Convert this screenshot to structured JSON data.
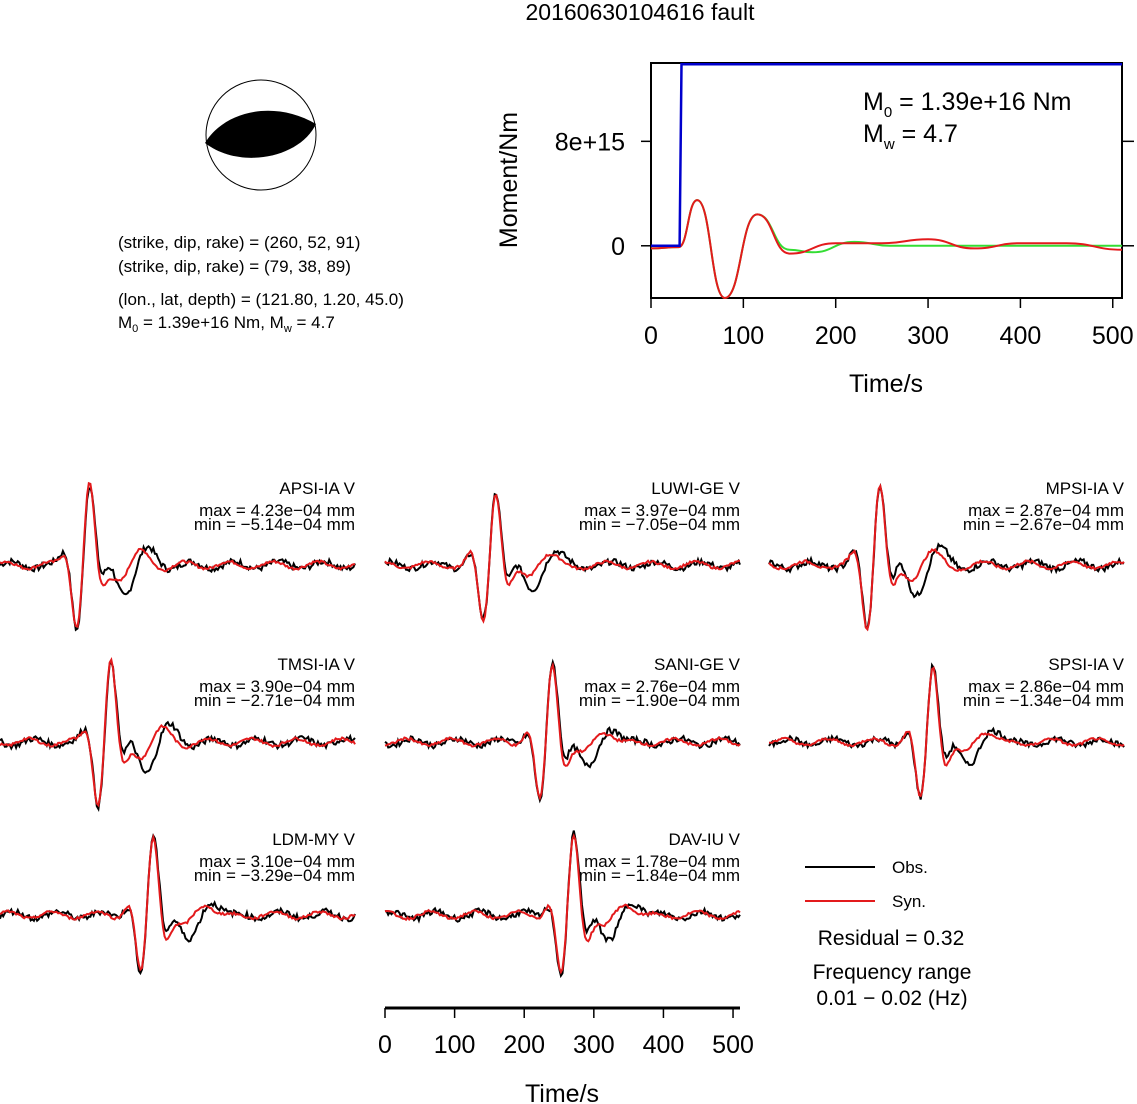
{
  "title": "20160630104616 fault",
  "mechanism_info": {
    "plane1": "(strike, dip, rake) = (260, 52, 91)",
    "plane2": "(strike, dip, rake) = (79, 38, 89)",
    "location": "(lon., lat, depth) = (121.80, 1.20, 45.0)",
    "moment_prefix": "M",
    "moment_sub": "0",
    "moment_mid": " = 1.39e+16 Nm, M",
    "moment_sub2": "w",
    "moment_end": " = 4.7"
  },
  "moment_annotation": {
    "m0_label": "M",
    "m0_sub": "0",
    "m0_value": " = 1.39e+16 Nm",
    "mw_label": "M",
    "mw_sub": "w",
    "mw_value": " = 4.7"
  },
  "legend": {
    "obs": "Obs.",
    "syn": "Syn.",
    "residual": "Residual = 0.32",
    "freq_label": "Frequency range",
    "freq_value": "0.01 − 0.02 (Hz)"
  },
  "colors": {
    "observed": "#000000",
    "synthetic": "#e31a1c",
    "moment": "#0000cc",
    "stf_fit": "#33dd33"
  },
  "chart_data": [
    {
      "type": "line",
      "xlabel": "Time/s",
      "ylabel": "Moment/Nm",
      "xlim": [
        0,
        510
      ],
      "ylim": [
        -4000000000000000.0,
        1.4e+16
      ],
      "xticks": [
        "0",
        "100",
        "200",
        "300",
        "400",
        "500"
      ],
      "yticks": [
        "0",
        "8e+15"
      ],
      "series": [
        {
          "x": [
            0,
            31,
            33,
            510
          ],
          "y": [
            0,
            0,
            1.39e+16,
            1.39e+16
          ]
        },
        {
          "x": [
            0,
            30,
            50,
            80,
            115,
            150,
            200,
            250,
            300,
            350,
            400,
            450,
            510
          ],
          "y": [
            -200000000000000.0,
            -100000000000000.0,
            3500000000000000.0,
            -4000000000000000.0,
            2400000000000000.0,
            -600000000000000.0,
            200000000000000.0,
            200000000000000.0,
            500000000000000.0,
            -200000000000000.0,
            200000000000000.0,
            200000000000000.0,
            -300000000000000.0
          ]
        },
        {
          "x": [
            0,
            30,
            50,
            80,
            115,
            150,
            175,
            220,
            260,
            300,
            510
          ],
          "y": [
            -200000000000000.0,
            -100000000000000.0,
            3500000000000000.0,
            -4000000000000000.0,
            2400000000000000.0,
            -300000000000000.0,
            -500000000000000.0,
            300000000000000.0,
            0,
            0,
            0
          ]
        }
      ]
    },
    {
      "type": "line",
      "xlabel": "Time/s",
      "xlim": [
        0,
        510
      ],
      "xticks": [
        "0",
        "100",
        "200",
        "300",
        "400",
        "500"
      ],
      "traces": [
        {
          "station": "APSI-IA V",
          "max": "max = 4.23e−04 mm",
          "min": "min = −5.14e−04 mm"
        },
        {
          "station": "LUWI-GE V",
          "max": "max = 3.97e−04 mm",
          "min": "min = −7.05e−04 mm"
        },
        {
          "station": "MPSI-IA V",
          "max": "max = 2.87e−04 mm",
          "min": "min = −2.67e−04 mm"
        },
        {
          "station": "TMSI-IA V",
          "max": "max = 3.90e−04 mm",
          "min": "min = −2.71e−04 mm"
        },
        {
          "station": "SANI-GE V",
          "max": "max = 2.76e−04 mm",
          "min": "min = −1.90e−04 mm"
        },
        {
          "station": "SPSI-IA V",
          "max": "max = 2.86e−04 mm",
          "min": "min = −1.34e−04 mm"
        },
        {
          "station": "LDM-MY V",
          "max": "max = 3.10e−04 mm",
          "min": "min = −3.29e−04 mm"
        },
        {
          "station": "DAV-IU V",
          "max": "max = 1.78e−04 mm",
          "min": "min = −1.84e−04 mm"
        }
      ]
    }
  ]
}
